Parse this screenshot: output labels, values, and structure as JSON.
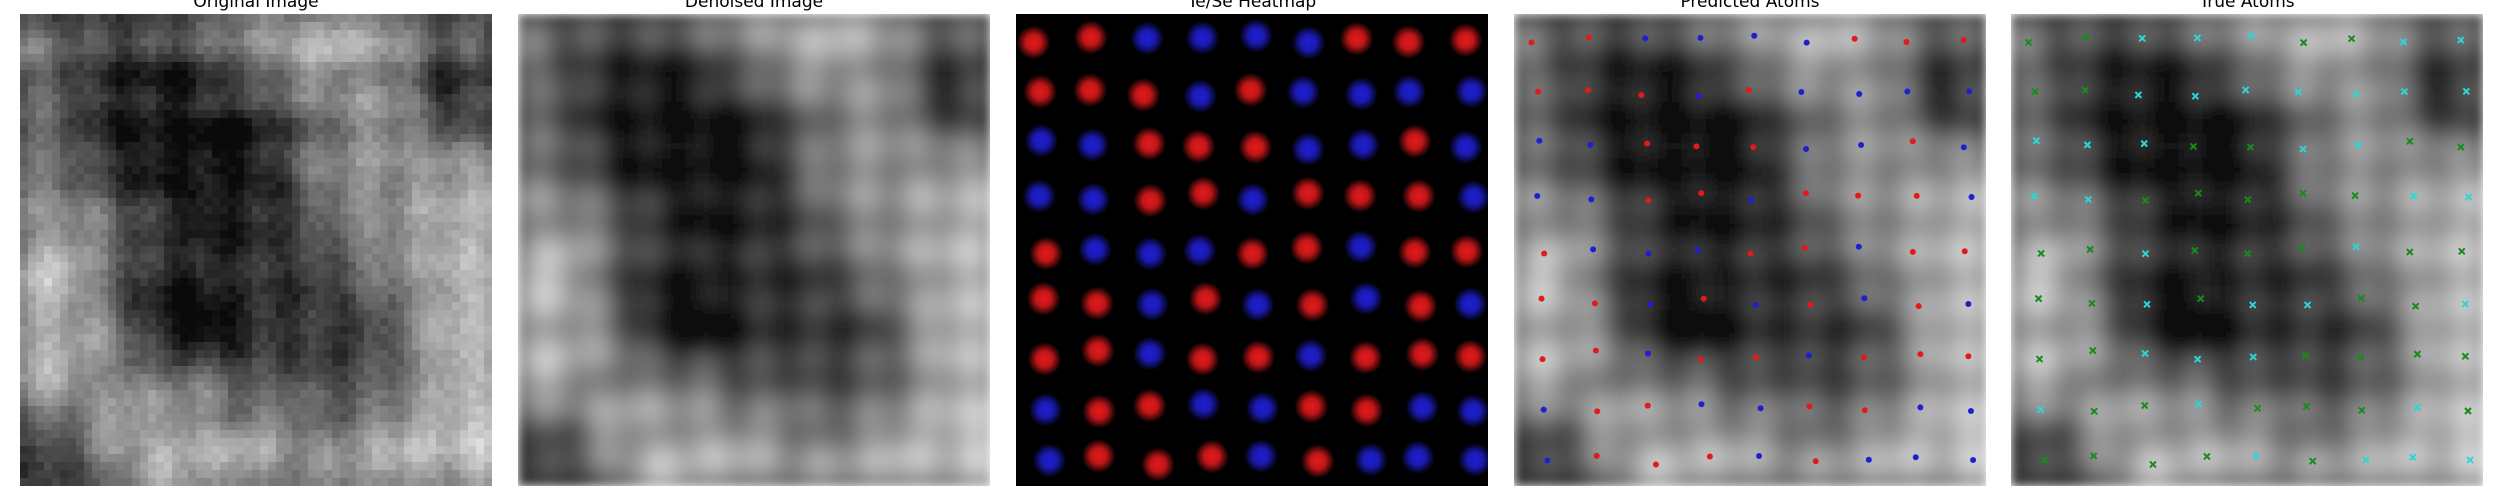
{
  "figure": {
    "panels": [
      {
        "id": "original",
        "title": "Original Image"
      },
      {
        "id": "denoised",
        "title": "Denoised Image"
      },
      {
        "id": "heatmap",
        "title": "Te/Se Heatmap"
      },
      {
        "id": "predicted",
        "title": "Predicted Atoms"
      },
      {
        "id": "true",
        "title": "True Atoms"
      }
    ],
    "marker_colors": {
      "te": "#e31a1c",
      "se": "#1f1fd1",
      "true_a": "#2fd5d5",
      "true_b": "#1a8a1a"
    },
    "lattice": {
      "rows": 9,
      "cols": 9
    },
    "heatmap_labels": [
      "RRBBBBRRR",
      "RRRBRBBBB",
      "BBRRRBBRB",
      "BBRRBRRRB",
      "RBBBRRBRR",
      "RRBRBRBRB",
      "RRBRRBRRR",
      "BRRBBRRBB",
      "BRRRBRBBB"
    ],
    "predicted_labels": [
      "RRBBBBRRR",
      "RRRBRBBBB",
      "BBRRRBBRB",
      "BBRRBRRRB",
      "RBBBRRBRR",
      "RRBRBRBRB",
      "RRBRRBRRR",
      "BRRBBRRBB",
      "BRRRBRBBB"
    ],
    "true_labels": [
      "GGCCCGGCC",
      "GGCCCCCCC",
      "CCCGGCCGG",
      "CCGGGGGCC",
      "GGCGGGCGG",
      "GGCGCCGGC",
      "GGCCCGGGG",
      "CGGCGGGCG",
      "GGGGCGCCC"
    ]
  }
}
